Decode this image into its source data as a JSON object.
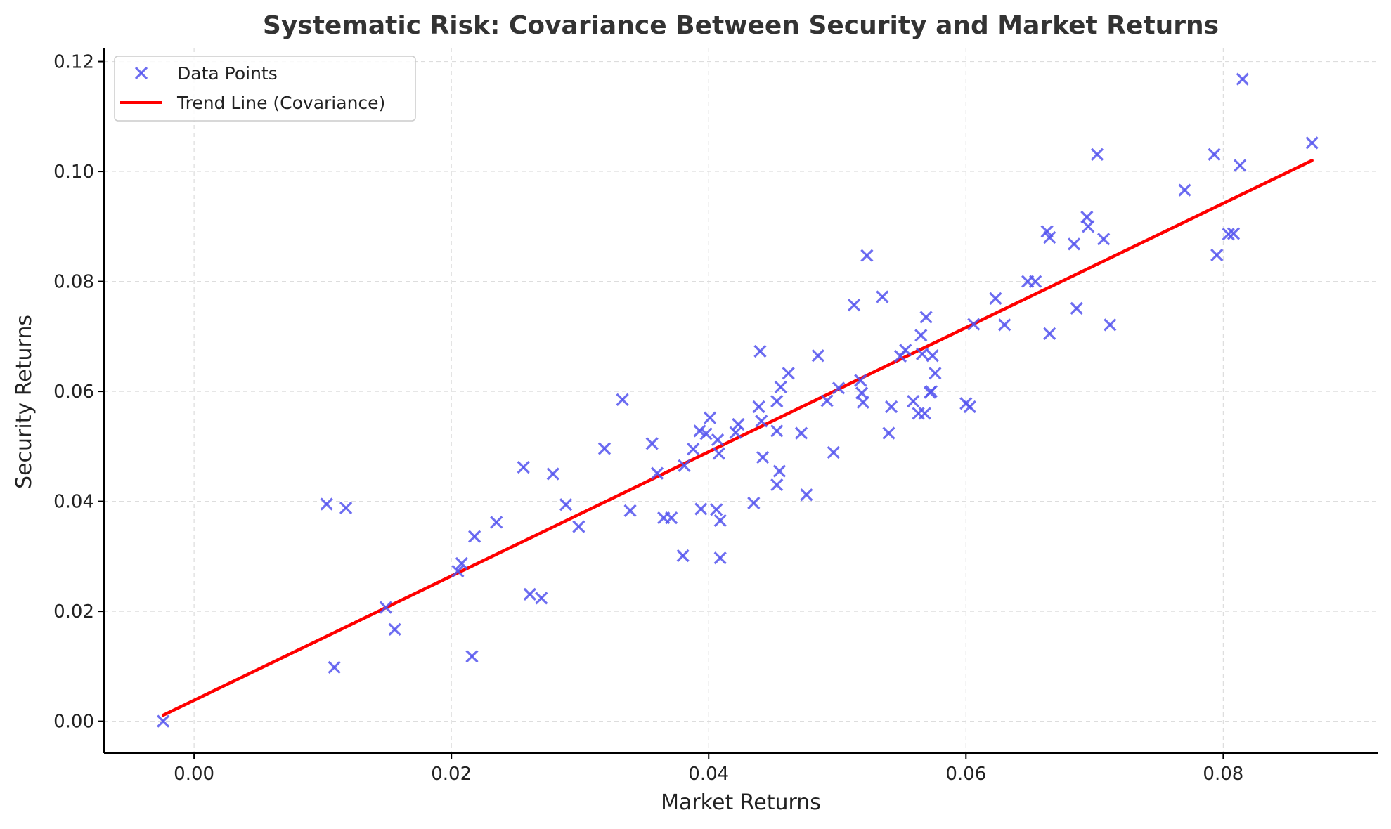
{
  "chart_data": {
    "type": "scatter",
    "title": "Systematic Risk: Covariance Between Security and Market Returns",
    "xlabel": "Market Returns",
    "ylabel": "Security Returns",
    "xlim": [
      -0.007,
      0.092
    ],
    "ylim": [
      -0.0058,
      0.1225
    ],
    "x_ticks": [
      0.0,
      0.02,
      0.04,
      0.06,
      0.08
    ],
    "x_tick_labels": [
      "0.00",
      "0.02",
      "0.04",
      "0.06",
      "0.08"
    ],
    "y_ticks": [
      0.0,
      0.02,
      0.04,
      0.06,
      0.08,
      0.1,
      0.12
    ],
    "y_tick_labels": [
      "0.00",
      "0.02",
      "0.04",
      "0.06",
      "0.08",
      "0.10",
      "0.12"
    ],
    "grid": true,
    "legend_position": "top-left",
    "legend": [
      "Data Points",
      "Trend Line (Covariance)"
    ],
    "series": [
      {
        "name": "Data Points",
        "kind": "scatter",
        "marker": "x",
        "color": "#5555ee",
        "points": [
          [
            -0.0024,
            0.0
          ],
          [
            0.0103,
            0.0395
          ],
          [
            0.0118,
            0.0388
          ],
          [
            0.0109,
            0.0098
          ],
          [
            0.0149,
            0.0207
          ],
          [
            0.0156,
            0.0167
          ],
          [
            0.0205,
            0.0273
          ],
          [
            0.0208,
            0.0287
          ],
          [
            0.0216,
            0.0118
          ],
          [
            0.0218,
            0.0336
          ],
          [
            0.0235,
            0.0362
          ],
          [
            0.0256,
            0.0462
          ],
          [
            0.0261,
            0.0231
          ],
          [
            0.027,
            0.0224
          ],
          [
            0.0279,
            0.045
          ],
          [
            0.0289,
            0.0394
          ],
          [
            0.0299,
            0.0354
          ],
          [
            0.0319,
            0.0496
          ],
          [
            0.0333,
            0.0585
          ],
          [
            0.0339,
            0.0383
          ],
          [
            0.0356,
            0.0505
          ],
          [
            0.036,
            0.0451
          ],
          [
            0.0365,
            0.037
          ],
          [
            0.0371,
            0.037
          ],
          [
            0.038,
            0.0301
          ],
          [
            0.0381,
            0.0465
          ],
          [
            0.0388,
            0.0495
          ],
          [
            0.0393,
            0.0528
          ],
          [
            0.0394,
            0.0386
          ],
          [
            0.0398,
            0.0523
          ],
          [
            0.0401,
            0.0552
          ],
          [
            0.0406,
            0.0385
          ],
          [
            0.0407,
            0.0512
          ],
          [
            0.0408,
            0.0487
          ],
          [
            0.0409,
            0.0297
          ],
          [
            0.0409,
            0.0365
          ],
          [
            0.0421,
            0.0525
          ],
          [
            0.0423,
            0.054
          ],
          [
            0.0435,
            0.0397
          ],
          [
            0.0439,
            0.0572
          ],
          [
            0.044,
            0.0673
          ],
          [
            0.0441,
            0.0546
          ],
          [
            0.0442,
            0.048
          ],
          [
            0.0453,
            0.0582
          ],
          [
            0.0453,
            0.0528
          ],
          [
            0.0453,
            0.043
          ],
          [
            0.0455,
            0.0455
          ],
          [
            0.0456,
            0.0608
          ],
          [
            0.0462,
            0.0633
          ],
          [
            0.0472,
            0.0524
          ],
          [
            0.0476,
            0.0412
          ],
          [
            0.0485,
            0.0665
          ],
          [
            0.0492,
            0.0583
          ],
          [
            0.0497,
            0.0489
          ],
          [
            0.0501,
            0.0606
          ],
          [
            0.0513,
            0.0757
          ],
          [
            0.0518,
            0.062
          ],
          [
            0.0519,
            0.0597
          ],
          [
            0.052,
            0.058
          ],
          [
            0.0523,
            0.0847
          ],
          [
            0.0535,
            0.0772
          ],
          [
            0.054,
            0.0524
          ],
          [
            0.0542,
            0.0572
          ],
          [
            0.0549,
            0.0664
          ],
          [
            0.0553,
            0.0675
          ],
          [
            0.0559,
            0.0582
          ],
          [
            0.0563,
            0.056
          ],
          [
            0.0565,
            0.0702
          ],
          [
            0.0566,
            0.0668
          ],
          [
            0.0568,
            0.056
          ],
          [
            0.0569,
            0.0735
          ],
          [
            0.0572,
            0.0598
          ],
          [
            0.0573,
            0.06
          ],
          [
            0.0574,
            0.0665
          ],
          [
            0.0576,
            0.0633
          ],
          [
            0.06,
            0.0578
          ],
          [
            0.0603,
            0.0572
          ],
          [
            0.0606,
            0.0722
          ],
          [
            0.0623,
            0.0769
          ],
          [
            0.063,
            0.0721
          ],
          [
            0.0648,
            0.08
          ],
          [
            0.0654,
            0.08
          ],
          [
            0.0663,
            0.0891
          ],
          [
            0.0665,
            0.088
          ],
          [
            0.0665,
            0.0705
          ],
          [
            0.0684,
            0.0868
          ],
          [
            0.0686,
            0.0751
          ],
          [
            0.0694,
            0.0917
          ],
          [
            0.0695,
            0.09
          ],
          [
            0.0702,
            0.1031
          ],
          [
            0.0707,
            0.0877
          ],
          [
            0.0712,
            0.0721
          ],
          [
            0.077,
            0.0966
          ],
          [
            0.0793,
            0.1031
          ],
          [
            0.0795,
            0.0848
          ],
          [
            0.0804,
            0.0886
          ],
          [
            0.0808,
            0.0887
          ],
          [
            0.0813,
            0.1011
          ],
          [
            0.0815,
            0.1168
          ],
          [
            0.0869,
            0.1052
          ]
        ]
      },
      {
        "name": "Trend Line (Covariance)",
        "kind": "line",
        "color": "#ff0000",
        "points": [
          [
            -0.0024,
            0.0011
          ],
          [
            0.0869,
            0.102
          ]
        ]
      }
    ]
  }
}
